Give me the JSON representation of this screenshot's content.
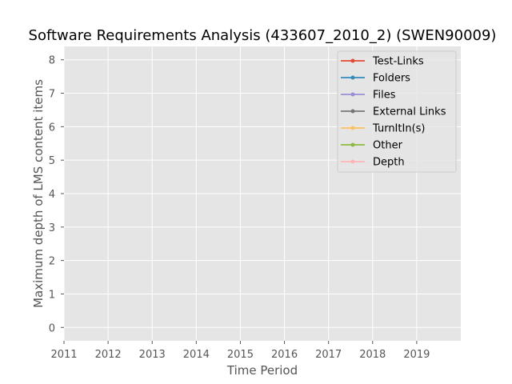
{
  "chart_data": {
    "type": "line",
    "title": "Software Requirements Analysis (433607_2010_2) (SWEN90009)",
    "xlabel": "Time Period",
    "ylabel": "Maximum depth of LMS content items",
    "xlim": [
      2011,
      2020
    ],
    "ylim": [
      -0.4,
      8.4
    ],
    "x_ticks": [
      "2011",
      "2012",
      "2013",
      "2014",
      "2015",
      "2016",
      "2017",
      "2018",
      "2019"
    ],
    "y_ticks": [
      "0",
      "1",
      "2",
      "3",
      "4",
      "5",
      "6",
      "7",
      "8"
    ],
    "grid": true,
    "legend_position": "top-right",
    "series": [
      {
        "name": "Test-Links",
        "color": "#e24a33",
        "values": []
      },
      {
        "name": "Folders",
        "color": "#348abd",
        "values": []
      },
      {
        "name": "Files",
        "color": "#988ed5",
        "values": []
      },
      {
        "name": "External Links",
        "color": "#777777",
        "values": []
      },
      {
        "name": "TurnItIn(s)",
        "color": "#fbc15e",
        "values": []
      },
      {
        "name": "Other",
        "color": "#8eba42",
        "values": []
      },
      {
        "name": "Depth",
        "color": "#ffb5b8",
        "values": []
      }
    ]
  }
}
